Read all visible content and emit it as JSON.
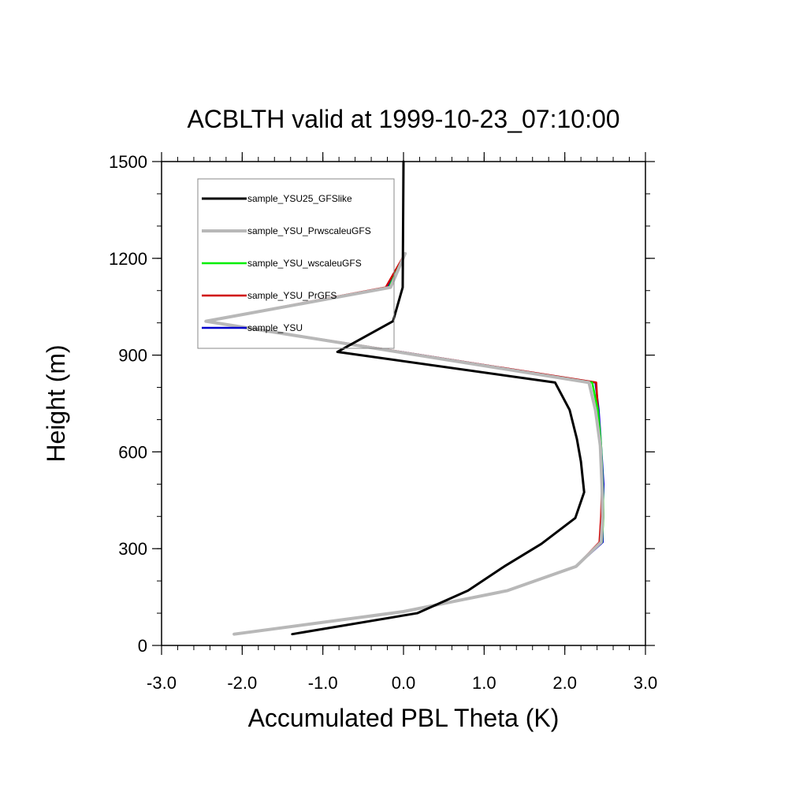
{
  "chart_data": {
    "type": "line",
    "title": "ACBLTH valid at 1999-10-23_07:10:00",
    "xlabel": "Accumulated PBL Theta (K)",
    "ylabel": "Height (m)",
    "xlim": [
      -3.0,
      3.0
    ],
    "ylim": [
      0,
      1500
    ],
    "xticks": [
      -3.0,
      -2.0,
      -1.0,
      0.0,
      1.0,
      2.0,
      3.0
    ],
    "xtick_labels": [
      "-3.0",
      "-2.0",
      "-1.0",
      "0.0",
      "1.0",
      "2.0",
      "3.0"
    ],
    "yticks": [
      0,
      300,
      600,
      900,
      1200,
      1500
    ],
    "ytick_labels": [
      "0",
      "300",
      "600",
      "900",
      "1200",
      "1500"
    ],
    "grid": false,
    "legend_position": "top-left",
    "series": [
      {
        "name": "sample_YSU",
        "color": "#0000cc",
        "width": 2.5,
        "points": [
          [
            -2.1,
            35
          ],
          [
            0.0,
            105
          ],
          [
            1.29,
            170
          ],
          [
            2.14,
            245
          ],
          [
            2.47,
            320
          ],
          [
            2.47,
            400
          ],
          [
            2.48,
            500
          ],
          [
            2.45,
            620
          ],
          [
            2.42,
            730
          ],
          [
            2.38,
            815
          ],
          [
            -2.45,
            1005
          ],
          [
            -0.2,
            1110
          ],
          [
            0.02,
            1215
          ]
        ]
      },
      {
        "name": "sample_YSU_PrGFS",
        "color": "#d00000",
        "width": 2.5,
        "points": [
          [
            -2.1,
            35
          ],
          [
            0.0,
            105
          ],
          [
            1.29,
            170
          ],
          [
            2.14,
            245
          ],
          [
            2.43,
            320
          ],
          [
            2.45,
            400
          ],
          [
            2.46,
            500
          ],
          [
            2.44,
            620
          ],
          [
            2.41,
            730
          ],
          [
            2.39,
            815
          ],
          [
            -2.45,
            1005
          ],
          [
            -0.22,
            1110
          ],
          [
            0.02,
            1215
          ]
        ]
      },
      {
        "name": "sample_YSU_wscaleuGFS",
        "color": "#00ee00",
        "width": 2.5,
        "points": [
          [
            -2.1,
            35
          ],
          [
            0.0,
            105
          ],
          [
            1.29,
            170
          ],
          [
            2.14,
            245
          ],
          [
            2.46,
            320
          ],
          [
            2.48,
            400
          ],
          [
            2.47,
            500
          ],
          [
            2.45,
            620
          ],
          [
            2.41,
            730
          ],
          [
            2.34,
            815
          ],
          [
            -2.45,
            1005
          ],
          [
            -0.18,
            1110
          ],
          [
            0.02,
            1215
          ]
        ]
      },
      {
        "name": "sample_YSU_PrwscaleuGFS",
        "color": "#b8b8b8",
        "width": 4,
        "points": [
          [
            -2.1,
            35
          ],
          [
            0.0,
            105
          ],
          [
            1.29,
            170
          ],
          [
            2.14,
            245
          ],
          [
            2.45,
            320
          ],
          [
            2.47,
            400
          ],
          [
            2.46,
            500
          ],
          [
            2.44,
            620
          ],
          [
            2.38,
            730
          ],
          [
            2.3,
            815
          ],
          [
            -2.45,
            1005
          ],
          [
            -0.16,
            1110
          ],
          [
            0.02,
            1215
          ]
        ]
      },
      {
        "name": "sample_YSU25_GFSlike",
        "color": "#000000",
        "width": 3,
        "points": [
          [
            -1.38,
            35
          ],
          [
            0.17,
            100
          ],
          [
            0.8,
            170
          ],
          [
            1.25,
            245
          ],
          [
            1.71,
            315
          ],
          [
            2.13,
            395
          ],
          [
            2.24,
            475
          ],
          [
            2.2,
            570
          ],
          [
            2.15,
            640
          ],
          [
            2.06,
            730
          ],
          [
            1.88,
            815
          ],
          [
            -0.82,
            910
          ],
          [
            -0.13,
            1005
          ],
          [
            -0.01,
            1110
          ],
          [
            0.0,
            1500
          ]
        ]
      }
    ]
  }
}
